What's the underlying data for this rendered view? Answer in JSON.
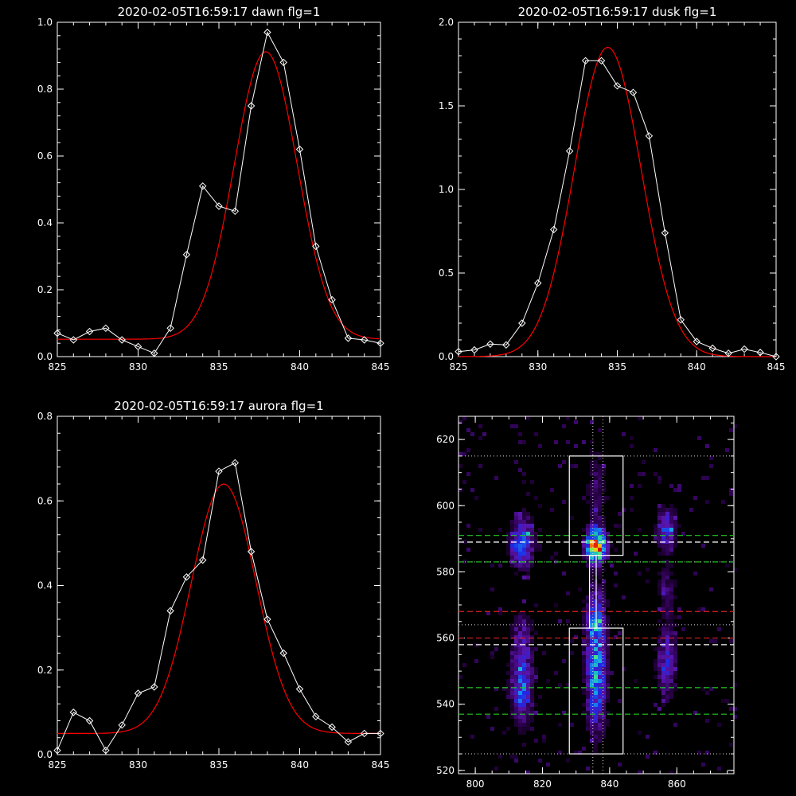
{
  "chart_data": [
    {
      "type": "line",
      "title": "2020-02-05T16:59:17 dawn flg=1",
      "xlim": [
        825,
        845
      ],
      "ylim": [
        0.0,
        1.0
      ],
      "xticks": [
        825,
        830,
        835,
        840,
        845
      ],
      "yticks": [
        0.0,
        0.2,
        0.4,
        0.6,
        0.8,
        1.0
      ],
      "ytick_labels": [
        "0.0",
        "0.2",
        "0.4",
        "0.6",
        "0.8",
        "1.0"
      ],
      "series": [
        {
          "x": [
            825,
            826,
            827,
            828,
            829,
            830,
            831,
            832,
            833,
            834,
            835,
            836,
            837,
            838,
            839,
            840,
            841,
            842,
            843,
            844,
            845
          ],
          "y": [
            0.07,
            0.05,
            0.075,
            0.085,
            0.05,
            0.03,
            0.01,
            0.085,
            0.305,
            0.51,
            0.45,
            0.435,
            0.75,
            0.97,
            0.88,
            0.62,
            0.33,
            0.17,
            0.055,
            0.05,
            0.04
          ]
        },
        {
          "fit": {
            "peak": 0.86,
            "center": 837.9,
            "sigma": 1.95,
            "base": 0.052
          }
        }
      ]
    },
    {
      "type": "line",
      "title": "2020-02-05T16:59:17 dusk flg=1",
      "xlim": [
        825,
        845
      ],
      "ylim": [
        0.0,
        2.0
      ],
      "xticks": [
        825,
        830,
        835,
        840,
        845
      ],
      "yticks": [
        0.0,
        0.5,
        1.0,
        1.5,
        2.0
      ],
      "ytick_labels": [
        "0.0",
        "0.5",
        "1.0",
        "1.5",
        "2.0"
      ],
      "series": [
        {
          "x": [
            825,
            826,
            827,
            828,
            829,
            830,
            831,
            832,
            833,
            834,
            835,
            836,
            837,
            838,
            839,
            840,
            841,
            842,
            843,
            844,
            845
          ],
          "y": [
            0.03,
            0.04,
            0.075,
            0.07,
            0.2,
            0.44,
            0.76,
            1.23,
            1.77,
            1.77,
            1.62,
            1.58,
            1.32,
            0.74,
            0.22,
            0.09,
            0.05,
            0.02,
            0.045,
            0.025,
            0.0
          ]
        },
        {
          "fit": {
            "peak": 1.85,
            "center": 834.4,
            "sigma": 2.1,
            "base": 0.0
          }
        }
      ]
    },
    {
      "type": "line",
      "title": "2020-02-05T16:59:17 aurora flg=1",
      "xlim": [
        825,
        845
      ],
      "ylim": [
        0.0,
        0.8
      ],
      "xticks": [
        825,
        830,
        835,
        840,
        845
      ],
      "yticks": [
        0.0,
        0.2,
        0.4,
        0.6,
        0.8
      ],
      "ytick_labels": [
        "0.0",
        "0.2",
        "0.4",
        "0.6",
        "0.8"
      ],
      "series": [
        {
          "x": [
            825,
            826,
            827,
            828,
            829,
            830,
            831,
            832,
            833,
            834,
            835,
            836,
            837,
            838,
            839,
            840,
            841,
            842,
            843,
            844,
            845
          ],
          "y": [
            0.01,
            0.1,
            0.08,
            0.01,
            0.07,
            0.145,
            0.16,
            0.34,
            0.42,
            0.46,
            0.67,
            0.69,
            0.48,
            0.32,
            0.24,
            0.155,
            0.09,
            0.065,
            0.03,
            0.05,
            0.05
          ]
        },
        {
          "fit": {
            "peak": 0.59,
            "center": 835.3,
            "sigma": 2.0,
            "base": 0.05
          }
        }
      ]
    },
    {
      "type": "heatmap",
      "title": "",
      "xlim": [
        795,
        877
      ],
      "ylim": [
        519,
        627
      ],
      "xticks": [
        800,
        820,
        840,
        860
      ],
      "yticks": [
        520,
        540,
        560,
        580,
        600,
        620
      ],
      "boxes": [
        {
          "x": [
            828,
            844
          ],
          "y": [
            585,
            615
          ]
        },
        {
          "x": [
            828,
            844
          ],
          "y": [
            525,
            563
          ]
        },
        {
          "x": [
            834,
            836
          ],
          "y": [
            563,
            585
          ]
        }
      ],
      "vlines_dotted": [
        835,
        838
      ],
      "hlines_dotted_white": [
        615,
        583,
        564,
        525
      ],
      "hlines_dashed_white": [
        589,
        558
      ],
      "hlines_dashed_green": [
        591,
        583,
        545,
        537
      ],
      "hlines_dashed_red": [
        568,
        560
      ],
      "colors": {
        "green": "#22cc22",
        "red": "#dd2222"
      }
    }
  ]
}
